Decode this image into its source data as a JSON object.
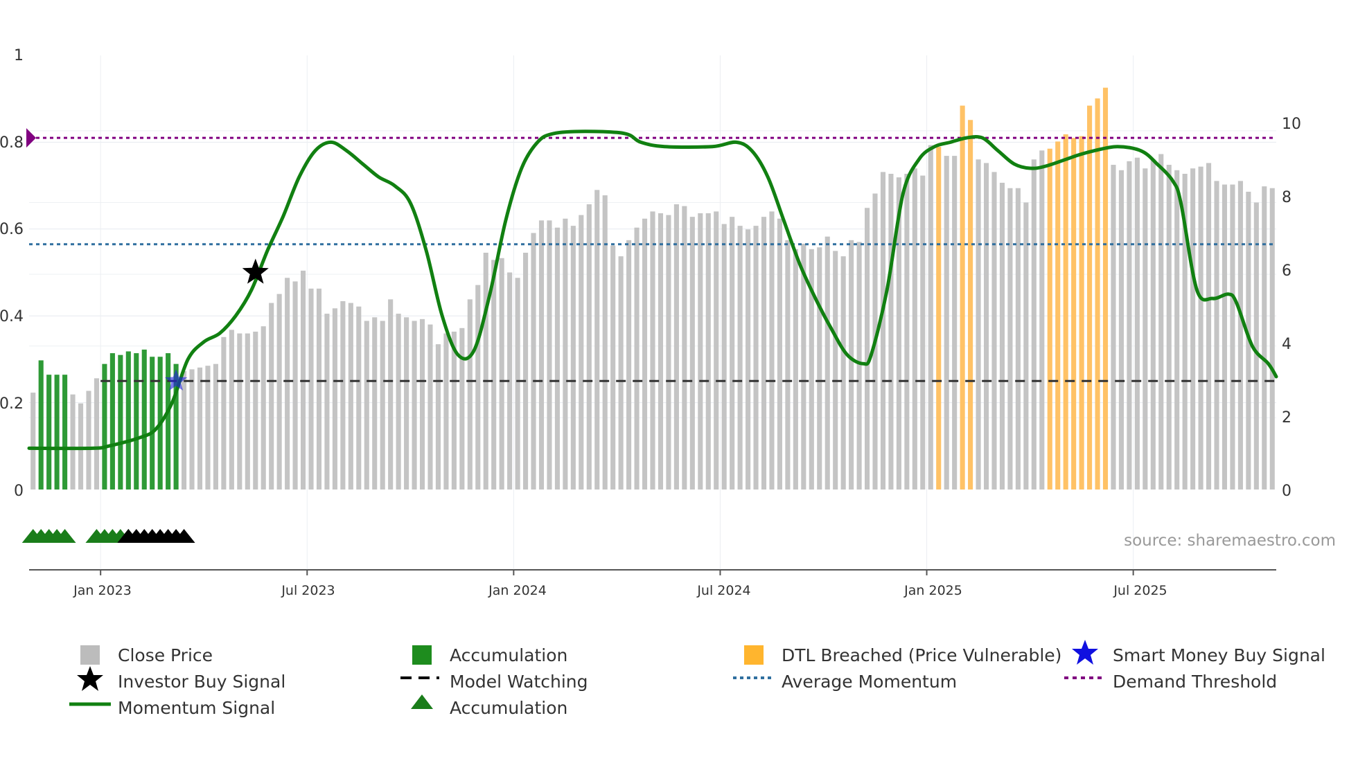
{
  "chart_data": {
    "type": "bar",
    "title": "",
    "source": "source: sharemaestro.com",
    "left_axis": {
      "ticks": [
        "0",
        "0.2",
        "0.4",
        "0.6",
        "0.8",
        "1"
      ],
      "values": [
        0,
        0.2,
        0.4,
        0.6,
        0.8,
        1
      ],
      "ylim": [
        0,
        1
      ]
    },
    "right_axis": {
      "ticks": [
        "0",
        "2",
        "4",
        "6",
        "8",
        "10"
      ],
      "values": [
        0,
        2,
        4,
        6,
        8,
        10
      ],
      "ylim": [
        0,
        12.1
      ]
    },
    "x_axis": {
      "ticks": [
        "Jan 2023",
        "Jul 2023",
        "Jan 2024",
        "Jul 2024",
        "Jan 2025",
        "Jul 2025"
      ],
      "tick_weeks": [
        9,
        35,
        61,
        87,
        113,
        139
      ],
      "n_weeks": 157
    },
    "price": {
      "name": "Close Price",
      "values": [
        2.7,
        3.6,
        3.2,
        3.2,
        3.2,
        2.65,
        2.4,
        2.75,
        3.1,
        3.5,
        3.8,
        3.75,
        3.85,
        3.8,
        3.9,
        3.7,
        3.7,
        3.8,
        3.5,
        3.3,
        3.35,
        3.4,
        3.45,
        3.5,
        4.25,
        4.45,
        4.35,
        4.35,
        4.4,
        4.55,
        5.2,
        5.45,
        5.9,
        5.8,
        6.1,
        5.6,
        5.6,
        4.9,
        5.05,
        5.25,
        5.2,
        5.1,
        4.7,
        4.8,
        4.7,
        5.3,
        4.9,
        4.8,
        4.7,
        4.75,
        4.6,
        4.05,
        4.35,
        4.4,
        4.5,
        5.3,
        5.7,
        6.6,
        6.4,
        6.45,
        6.05,
        5.9,
        6.6,
        7.15,
        7.5,
        7.5,
        7.3,
        7.55,
        7.35,
        7.65,
        7.95,
        8.35,
        8.2,
        6.8,
        6.5,
        6.95,
        7.3,
        7.55,
        7.75,
        7.7,
        7.65,
        7.95,
        7.9,
        7.6,
        7.7,
        7.7,
        7.75,
        7.4,
        7.6,
        7.35,
        7.25,
        7.35,
        7.6,
        7.75,
        7.55,
        6.95,
        6.7,
        6.85,
        6.7,
        6.75,
        7.05,
        6.65,
        6.5,
        6.95,
        6.9,
        7.85,
        8.25,
        8.85,
        8.8,
        8.7,
        8.8,
        8.95,
        8.75,
        9.6,
        9.55,
        9.3,
        9.3,
        10.7,
        10.3,
        9.2,
        9.1,
        8.85,
        8.55,
        8.4,
        8.4,
        8.0,
        9.2,
        9.45,
        9.5,
        9.7,
        9.9,
        9.8,
        9.85,
        10.7,
        10.9,
        11.2,
        9.05,
        8.9,
        9.15,
        9.25,
        8.95,
        9.2,
        9.35,
        9.05,
        8.9,
        8.8,
        8.95,
        9.0,
        9.1,
        8.6,
        8.5,
        8.5,
        8.6,
        8.3,
        8.0,
        8.45,
        8.4
      ]
    },
    "accumulation_weeks": [
      1,
      2,
      3,
      4,
      9,
      10,
      11,
      12,
      13,
      14,
      15,
      16,
      17,
      18
    ],
    "dtl_breached_weeks": [
      114,
      117,
      118,
      128,
      129,
      130,
      131,
      132,
      133,
      134,
      135
    ],
    "momentum": {
      "name": "Momentum Signal",
      "points": [
        [
          0,
          0.095
        ],
        [
          8,
          0.095
        ],
        [
          10,
          0.1
        ],
        [
          14,
          0.12
        ],
        [
          16,
          0.14
        ],
        [
          18,
          0.2
        ],
        [
          20,
          0.3
        ],
        [
          22,
          0.34
        ],
        [
          24,
          0.36
        ],
        [
          26,
          0.4
        ],
        [
          28,
          0.46
        ],
        [
          30,
          0.55
        ],
        [
          32,
          0.63
        ],
        [
          34,
          0.72
        ],
        [
          36,
          0.78
        ],
        [
          38,
          0.8
        ],
        [
          40,
          0.78
        ],
        [
          42,
          0.75
        ],
        [
          44,
          0.72
        ],
        [
          46,
          0.7
        ],
        [
          48,
          0.66
        ],
        [
          50,
          0.55
        ],
        [
          52,
          0.4
        ],
        [
          54,
          0.31
        ],
        [
          56,
          0.32
        ],
        [
          58,
          0.45
        ],
        [
          60,
          0.62
        ],
        [
          62,
          0.74
        ],
        [
          64,
          0.8
        ],
        [
          66,
          0.82
        ],
        [
          70,
          0.825
        ],
        [
          75,
          0.82
        ],
        [
          77,
          0.8
        ],
        [
          80,
          0.79
        ],
        [
          86,
          0.79
        ],
        [
          89,
          0.8
        ],
        [
          91,
          0.78
        ],
        [
          93,
          0.72
        ],
        [
          95,
          0.62
        ],
        [
          97,
          0.52
        ],
        [
          99,
          0.44
        ],
        [
          101,
          0.37
        ],
        [
          103,
          0.31
        ],
        [
          105,
          0.29
        ],
        [
          106,
          0.31
        ],
        [
          108,
          0.46
        ],
        [
          110,
          0.68
        ],
        [
          112,
          0.76
        ],
        [
          114,
          0.79
        ],
        [
          116,
          0.8
        ],
        [
          118,
          0.81
        ],
        [
          120,
          0.81
        ],
        [
          122,
          0.78
        ],
        [
          124,
          0.75
        ],
        [
          126,
          0.74
        ],
        [
          128,
          0.745
        ],
        [
          132,
          0.77
        ],
        [
          134,
          0.78
        ],
        [
          137,
          0.79
        ],
        [
          140,
          0.78
        ],
        [
          142,
          0.75
        ],
        [
          144,
          0.71
        ],
        [
          145,
          0.66
        ],
        [
          147,
          0.46
        ],
        [
          149,
          0.44
        ],
        [
          151,
          0.45
        ],
        [
          152,
          0.43
        ],
        [
          154,
          0.33
        ],
        [
          156,
          0.29
        ],
        [
          157,
          0.26
        ]
      ]
    },
    "average_momentum": 0.565,
    "model_watching_level": 0.25,
    "model_watching_start_week": 9,
    "demand_threshold": 0.81,
    "investor_buy_signal": {
      "week": 28.5,
      "value": 0.5
    },
    "smart_money_buy_signal": {
      "week": 18.5,
      "value": 0.25
    },
    "markers": {
      "accumulation_green_weeks": [
        0.5,
        1.5,
        2.5,
        3.5,
        4.5,
        8.5,
        9.5,
        10.5,
        11.5,
        12.5
      ],
      "accumulation_black_weeks": [
        12.5,
        13.5,
        14.5,
        15.5,
        16.5,
        17.5,
        18.5,
        19.5
      ]
    },
    "legend": [
      "Close Price",
      "Accumulation",
      "DTL Breached (Price Vulnerable)",
      "Smart Money Buy Signal",
      "Investor Buy Signal",
      "Model Watching",
      "Average Momentum",
      "Demand Threshold",
      "Momentum Signal",
      "Accumulation"
    ]
  },
  "colors": {
    "price": "#c4c4c4",
    "accumulation": "#2e9a36",
    "dtl": "#ffc266",
    "momentum": "#118011",
    "average_momentum": "#2f6f9f",
    "demand_threshold": "#800080",
    "model_watching": "#333333",
    "smart_money": "#1f1fe0"
  }
}
